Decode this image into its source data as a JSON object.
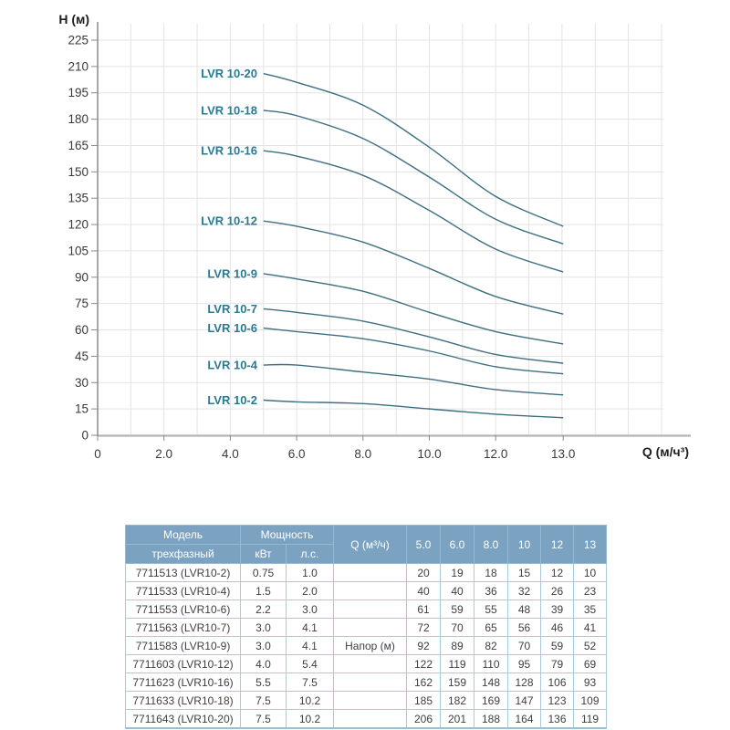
{
  "chart": {
    "y_axis_title": "H (м)",
    "x_axis_title": "Q (м/ч³)",
    "grid_color": "#e3e3e3",
    "x_axis_line_color": "#b5b5b5",
    "y_axis_line_color": "#8a8a8a",
    "tick_label_color": "#3a3a3a",
    "curve_color": "#3e6f80",
    "curve_label_color": "#2a7a92"
  },
  "chart_data": {
    "type": "line",
    "title": "",
    "xlabel": "Q (м/ч³)",
    "ylabel": "H (м)",
    "x": [
      5.0,
      6.0,
      8.0,
      10,
      12,
      13
    ],
    "series": [
      {
        "name": "LVR 10-20",
        "values": [
          206,
          201,
          188,
          164,
          136,
          119
        ]
      },
      {
        "name": "LVR 10-18",
        "values": [
          185,
          182,
          169,
          147,
          123,
          109
        ]
      },
      {
        "name": "LVR 10-16",
        "values": [
          162,
          159,
          148,
          128,
          106,
          93
        ]
      },
      {
        "name": "LVR 10-12",
        "values": [
          122,
          119,
          110,
          95,
          79,
          69
        ]
      },
      {
        "name": "LVR 10-9",
        "values": [
          92,
          89,
          82,
          70,
          59,
          52
        ]
      },
      {
        "name": "LVR 10-7",
        "values": [
          72,
          70,
          65,
          56,
          46,
          41
        ]
      },
      {
        "name": "LVR 10-6",
        "values": [
          61,
          59,
          55,
          48,
          39,
          35
        ]
      },
      {
        "name": "LVR 10-4",
        "values": [
          40,
          40,
          36,
          32,
          26,
          23
        ]
      },
      {
        "name": "LVR 10-2",
        "values": [
          20,
          19,
          18,
          15,
          12,
          10
        ]
      }
    ],
    "x_ticks": [
      {
        "q": 0,
        "label": "0"
      },
      {
        "q": 2,
        "label": "2.0"
      },
      {
        "q": 4,
        "label": "4.0"
      },
      {
        "q": 6,
        "label": "6.0"
      },
      {
        "q": 8,
        "label": "8.0"
      },
      {
        "q": 10,
        "label": "10.0"
      },
      {
        "q": 12,
        "label": "12.0"
      },
      {
        "q": 13,
        "label": "13.0"
      }
    ],
    "y_ticks": [
      0,
      15,
      30,
      45,
      60,
      75,
      90,
      105,
      120,
      135,
      150,
      165,
      180,
      195,
      210,
      225
    ],
    "ylim": [
      0,
      225
    ],
    "xlim": [
      0,
      13
    ],
    "grid": true,
    "legend_position": "inline-labels"
  },
  "table": {
    "header": {
      "model": "Модель",
      "model_sub": "трехфазный",
      "power": "Мощность",
      "kw": "кВт",
      "hp": "л.с.",
      "q": "Q (м³/ч)",
      "flow_cols": [
        "5.0",
        "6.0",
        "8.0",
        "10",
        "12",
        "13"
      ]
    },
    "rows": [
      {
        "model": "7711513 (LVR10-2)",
        "kw": "0.75",
        "hp": "1.0",
        "mid": "",
        "values": [
          "20",
          "19",
          "18",
          "15",
          "12",
          "10"
        ]
      },
      {
        "model": "7711533 (LVR10-4)",
        "kw": "1.5",
        "hp": "2.0",
        "mid": "",
        "values": [
          "40",
          "40",
          "36",
          "32",
          "26",
          "23"
        ]
      },
      {
        "model": "7711553 (LVR10-6)",
        "kw": "2.2",
        "hp": "3.0",
        "mid": "",
        "values": [
          "61",
          "59",
          "55",
          "48",
          "39",
          "35"
        ]
      },
      {
        "model": "7711563 (LVR10-7)",
        "kw": "3.0",
        "hp": "4.1",
        "mid": "",
        "values": [
          "72",
          "70",
          "65",
          "56",
          "46",
          "41"
        ]
      },
      {
        "model": "7711583 (LVR10-9)",
        "kw": "3.0",
        "hp": "4.1",
        "mid": "Напор (м)",
        "values": [
          "92",
          "89",
          "82",
          "70",
          "59",
          "52"
        ]
      },
      {
        "model": "7711603 (LVR10-12)",
        "kw": "4.0",
        "hp": "5.4",
        "mid": "",
        "values": [
          "122",
          "119",
          "110",
          "95",
          "79",
          "69"
        ]
      },
      {
        "model": "7711623 (LVR10-16)",
        "kw": "5.5",
        "hp": "7.5",
        "mid": "",
        "values": [
          "162",
          "159",
          "148",
          "128",
          "106",
          "93"
        ]
      },
      {
        "model": "7711633 (LVR10-18)",
        "kw": "7.5",
        "hp": "10.2",
        "mid": "",
        "values": [
          "185",
          "182",
          "169",
          "147",
          "123",
          "109"
        ]
      },
      {
        "model": "7711643 (LVR10-20)",
        "kw": "7.5",
        "hp": "10.2",
        "mid": "",
        "values": [
          "206",
          "201",
          "188",
          "164",
          "136",
          "119"
        ]
      }
    ],
    "colors": {
      "header_bg": "#7ba3c1",
      "header_text": "#ffffff",
      "border": "#a9cbdd",
      "body_text": "#3f3f3f"
    }
  }
}
